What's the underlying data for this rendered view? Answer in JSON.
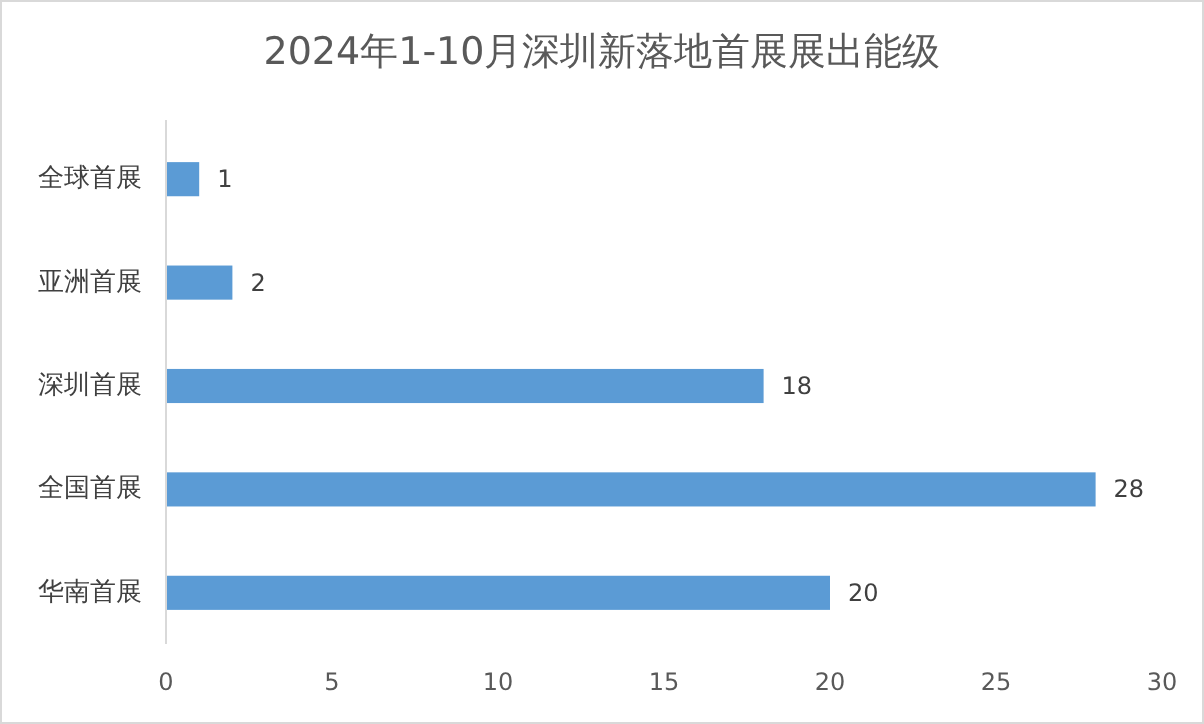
{
  "chart_data": {
    "type": "bar",
    "title": "2024年1-10月深圳新落地首展展出能级",
    "orientation": "horizontal",
    "categories": [
      "全球首展",
      "亚洲首展",
      "深圳首展",
      "全国首展",
      "华南首展"
    ],
    "values": [
      1,
      2,
      18,
      28,
      20
    ],
    "color": "#5b9bd5",
    "data_labels": true,
    "xlim": [
      0,
      30
    ],
    "xticks": [
      0,
      5,
      10,
      15,
      20,
      25,
      30
    ],
    "grid": false
  }
}
